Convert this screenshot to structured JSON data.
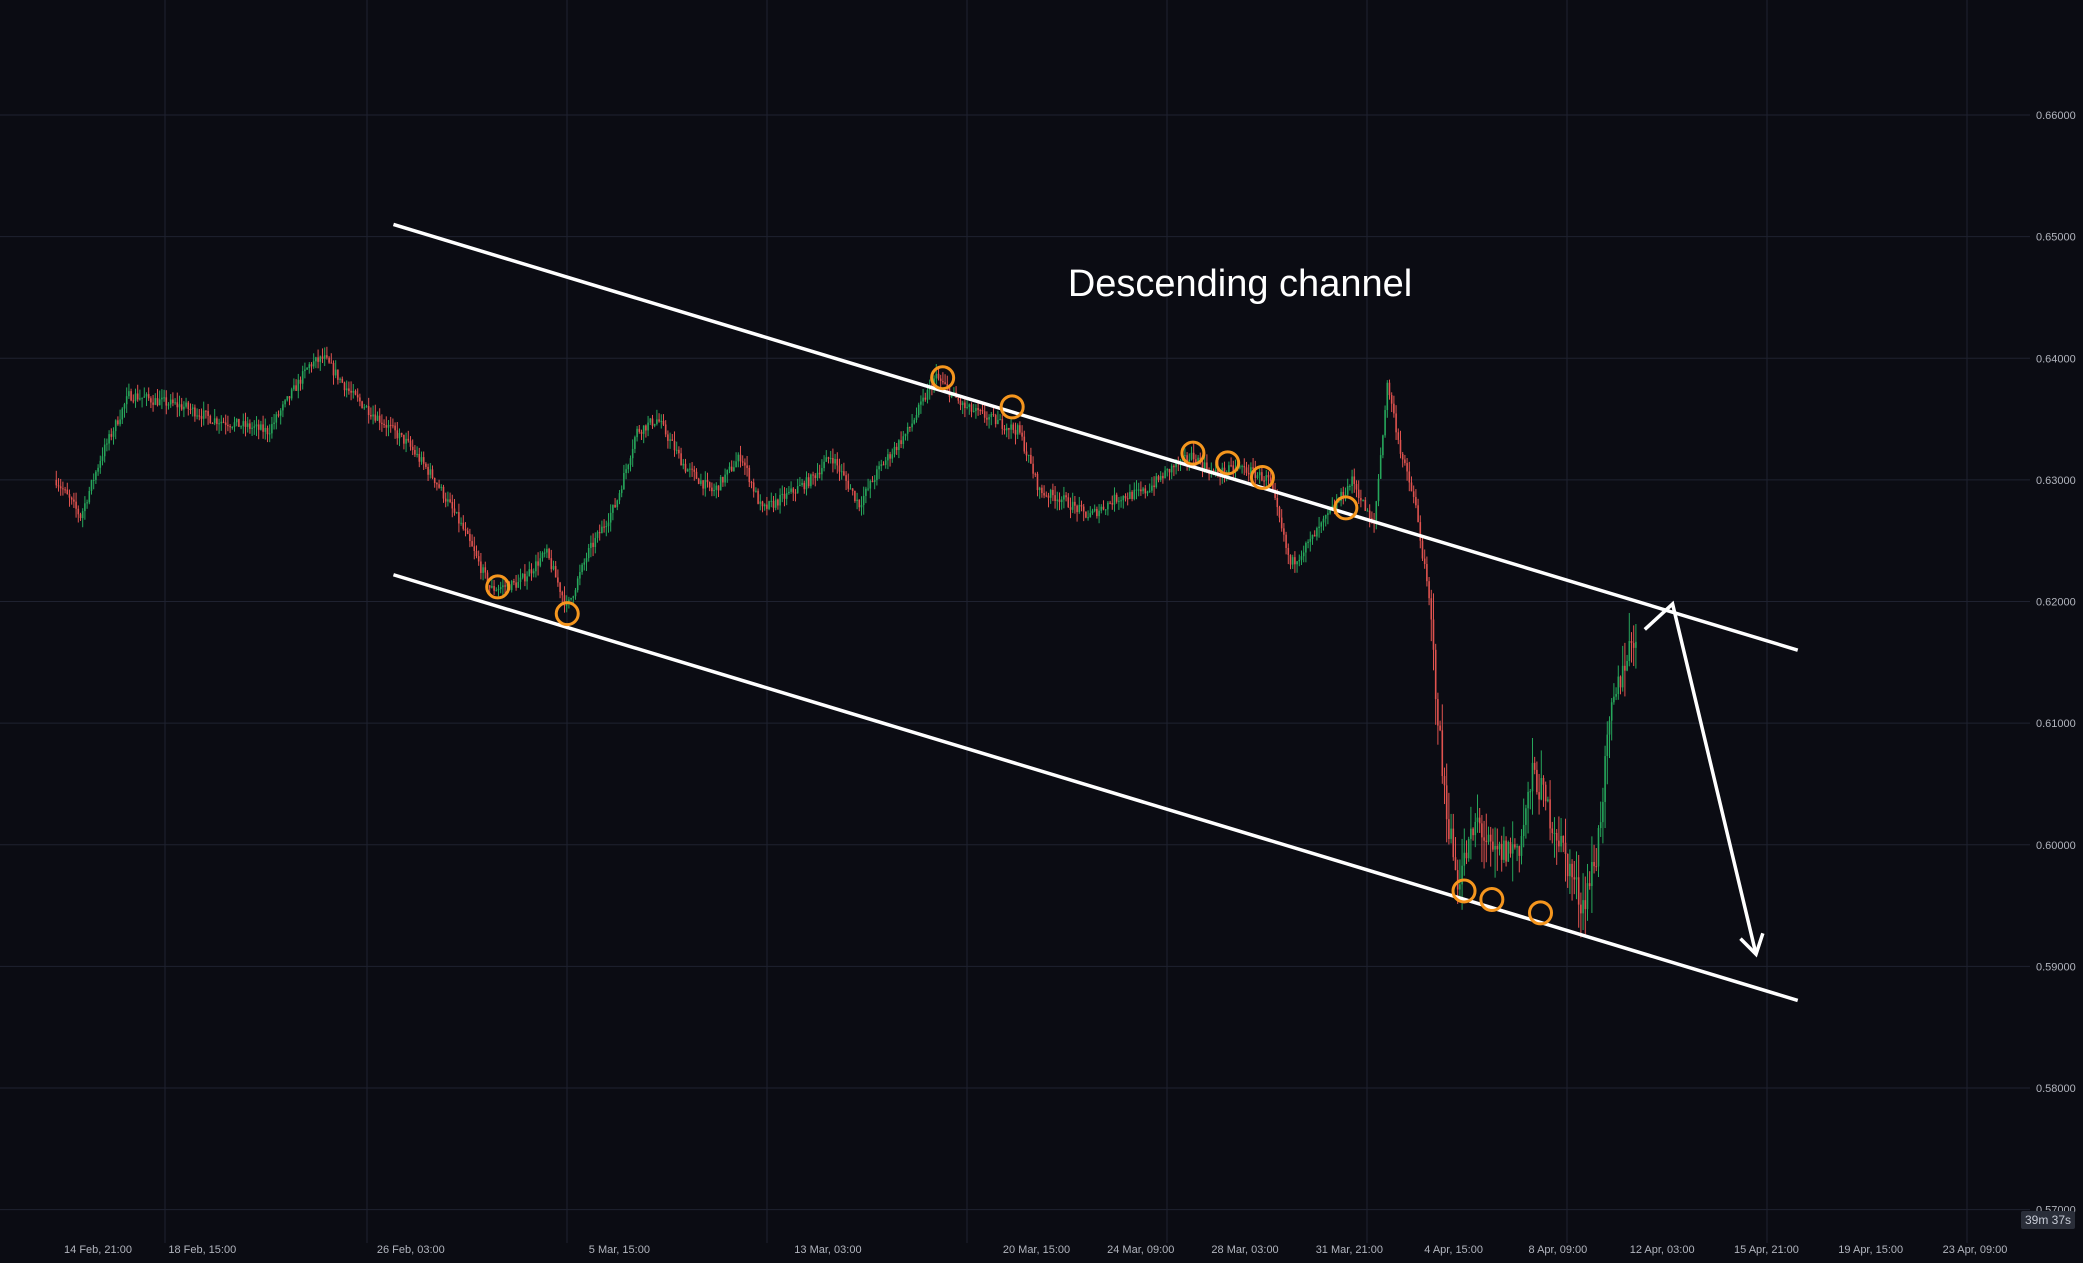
{
  "chart_data": {
    "type": "candlestick",
    "title": "",
    "annotation": "Descending channel",
    "x_tick_labels": [
      "14 Feb, 21:00",
      "18 Feb, 15:00",
      "26 Feb, 03:00",
      "5 Mar, 15:00",
      "13 Mar, 03:00",
      "20 Mar, 15:00",
      "24 Mar, 09:00",
      "28 Mar, 03:00",
      "31 Mar, 21:00",
      "4 Apr, 15:00",
      "8 Apr, 09:00",
      "12 Apr, 03:00",
      "15 Apr, 21:00",
      "19 Apr, 15:00",
      "23 Apr, 09:00"
    ],
    "y_tick_labels": [
      "0.66000",
      "0.65000",
      "0.64000",
      "0.63000",
      "0.62000",
      "0.61000",
      "0.60000",
      "0.59000",
      "0.58000",
      "0.57000"
    ],
    "ylim": [
      0.5698,
      0.6675
    ],
    "grid": true,
    "price_path": [
      {
        "x": "13 Feb, 09:00",
        "y": 0.63
      },
      {
        "x": "14 Feb, 06:00",
        "y": 0.627
      },
      {
        "x": "15 Feb, 00:00",
        "y": 0.632
      },
      {
        "x": "16 Feb, 00:00",
        "y": 0.637
      },
      {
        "x": "18 Feb, 00:00",
        "y": 0.636
      },
      {
        "x": "19 Feb, 00:00",
        "y": 0.635
      },
      {
        "x": "20 Feb, 00:00",
        "y": 0.6345
      },
      {
        "x": "21 Feb, 00:00",
        "y": 0.634
      },
      {
        "x": "22 Feb, 12:00",
        "y": 0.6395
      },
      {
        "x": "23 Feb, 00:00",
        "y": 0.64
      },
      {
        "x": "24 Feb, 00:00",
        "y": 0.637
      },
      {
        "x": "25 Feb, 00:00",
        "y": 0.635
      },
      {
        "x": "26 Feb, 00:00",
        "y": 0.633
      },
      {
        "x": "27 Feb, 00:00",
        "y": 0.63
      },
      {
        "x": "28 Feb, 00:00",
        "y": 0.626
      },
      {
        "x": "1 Mar, 00:00",
        "y": 0.621
      },
      {
        "x": "2 Mar, 00:00",
        "y": 0.6215
      },
      {
        "x": "3 Mar, 00:00",
        "y": 0.624
      },
      {
        "x": "3 Mar, 18:00",
        "y": 0.6195
      },
      {
        "x": "4 Mar, 12:00",
        "y": 0.624
      },
      {
        "x": "5 Mar, 12:00",
        "y": 0.628
      },
      {
        "x": "6 Mar, 06:00",
        "y": 0.634
      },
      {
        "x": "7 Mar, 00:00",
        "y": 0.635
      },
      {
        "x": "8 Mar, 00:00",
        "y": 0.631
      },
      {
        "x": "9 Mar, 00:00",
        "y": 0.629
      },
      {
        "x": "10 Mar, 00:00",
        "y": 0.632
      },
      {
        "x": "10 Mar, 18:00",
        "y": 0.6275
      },
      {
        "x": "11 Mar, 12:00",
        "y": 0.6285
      },
      {
        "x": "12 Mar, 12:00",
        "y": 0.63
      },
      {
        "x": "13 Mar, 06:00",
        "y": 0.632
      },
      {
        "x": "14 Mar, 06:00",
        "y": 0.628
      },
      {
        "x": "15 Mar, 00:00",
        "y": 0.631
      },
      {
        "x": "16 Mar, 00:00",
        "y": 0.634
      },
      {
        "x": "17 Mar, 00:00",
        "y": 0.6385
      },
      {
        "x": "18 Mar, 00:00",
        "y": 0.636
      },
      {
        "x": "19 Mar, 00:00",
        "y": 0.635
      },
      {
        "x": "20 Mar, 00:00",
        "y": 0.634
      },
      {
        "x": "20 Mar, 18:00",
        "y": 0.629
      },
      {
        "x": "21 Mar, 12:00",
        "y": 0.6285
      },
      {
        "x": "22 Mar, 12:00",
        "y": 0.627
      },
      {
        "x": "23 Mar, 12:00",
        "y": 0.6285
      },
      {
        "x": "24 Mar, 12:00",
        "y": 0.629
      },
      {
        "x": "25 Mar, 12:00",
        "y": 0.631
      },
      {
        "x": "26 Mar, 06:00",
        "y": 0.632
      },
      {
        "x": "27 Mar, 00:00",
        "y": 0.6305
      },
      {
        "x": "28 Mar, 00:00",
        "y": 0.631
      },
      {
        "x": "29 Mar, 00:00",
        "y": 0.63
      },
      {
        "x": "29 Mar, 18:00",
        "y": 0.623
      },
      {
        "x": "30 Mar, 12:00",
        "y": 0.625
      },
      {
        "x": "31 Mar, 06:00",
        "y": 0.6275
      },
      {
        "x": "1 Apr, 00:00",
        "y": 0.63
      },
      {
        "x": "1 Apr, 18:00",
        "y": 0.626
      },
      {
        "x": "2 Apr, 06:00",
        "y": 0.638
      },
      {
        "x": "2 Apr, 18:00",
        "y": 0.632
      },
      {
        "x": "3 Apr, 06:00",
        "y": 0.628
      },
      {
        "x": "3 Apr, 18:00",
        "y": 0.62
      },
      {
        "x": "4 Apr, 06:00",
        "y": 0.605
      },
      {
        "x": "4 Apr, 18:00",
        "y": 0.597
      },
      {
        "x": "5 Apr, 12:00",
        "y": 0.602
      },
      {
        "x": "6 Apr, 00:00",
        "y": 0.599
      },
      {
        "x": "7 Apr, 00:00",
        "y": 0.6
      },
      {
        "x": "7 Apr, 12:00",
        "y": 0.606
      },
      {
        "x": "8 Apr, 12:00",
        "y": 0.6
      },
      {
        "x": "9 Apr, 06:00",
        "y": 0.595
      },
      {
        "x": "9 Apr, 18:00",
        "y": 0.599
      },
      {
        "x": "10 Apr, 06:00",
        "y": 0.61
      },
      {
        "x": "10 Apr, 18:00",
        "y": 0.615
      },
      {
        "x": "11 Apr, 06:00",
        "y": 0.618
      }
    ],
    "channel": {
      "upper": [
        {
          "x": "25 Feb, 12:00",
          "y": 0.651
        },
        {
          "x": "17 Apr, 00:00",
          "y": 0.616
        }
      ],
      "lower": [
        {
          "x": "25 Feb, 12:00",
          "y": 0.6222
        },
        {
          "x": "17 Apr, 00:00",
          "y": 0.5872
        }
      ]
    },
    "touch_points": [
      {
        "x": "1 Mar, 06:00",
        "y": 0.6212
      },
      {
        "x": "3 Mar, 18:00",
        "y": 0.619
      },
      {
        "x": "17 Mar, 06:00",
        "y": 0.6384
      },
      {
        "x": "19 Mar, 18:00",
        "y": 0.636
      },
      {
        "x": "26 Mar, 06:00",
        "y": 0.6322
      },
      {
        "x": "27 Mar, 12:00",
        "y": 0.6314
      },
      {
        "x": "28 Mar, 18:00",
        "y": 0.6302
      },
      {
        "x": "31 Mar, 18:00",
        "y": 0.6277
      },
      {
        "x": "5 Apr, 00:00",
        "y": 0.5962
      },
      {
        "x": "6 Apr, 00:00",
        "y": 0.5955
      },
      {
        "x": "7 Apr, 18:00",
        "y": 0.5944
      }
    ],
    "projection_arrow": [
      {
        "x": "11 Apr, 12:00",
        "y": 0.6177
      },
      {
        "x": "12 Apr, 12:00",
        "y": 0.6198
      },
      {
        "x": "15 Apr, 12:00",
        "y": 0.591
      }
    ],
    "colors": {
      "background": "#0b0c13",
      "grid": "#1f2230",
      "up": "#26a65b",
      "down": "#e0534f",
      "channel": "#ffffff",
      "touch_marker": "#f5961e",
      "axis_text": "#b2b5be"
    }
  },
  "countdown": "39m 37s"
}
